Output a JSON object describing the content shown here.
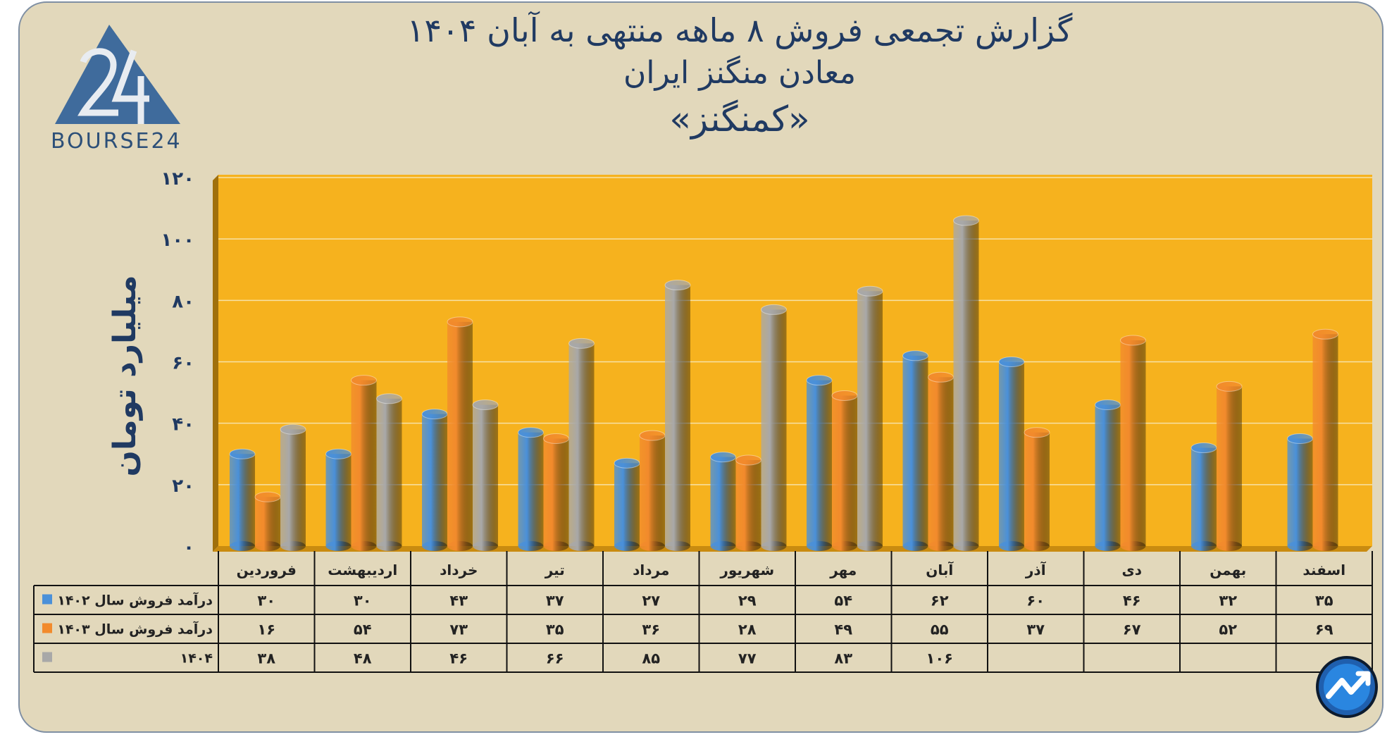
{
  "title": {
    "line1": "گزارش تجمعی فروش ۸ ماهه منتهی به آبان ۱۴۰۴",
    "line2": "معادن منگنز ایران",
    "line3": "«کمنگنز»"
  },
  "brand": {
    "text": "BOURSE24",
    "logo_icon": "bourse24-triangle-logo",
    "corner_icon": "trend-arrow-logo"
  },
  "colors": {
    "series_1402": "#4a90d9",
    "series_1403": "#f28a2c",
    "series_1404": "#a8a8a8",
    "plot_bg": "#f6b21e",
    "card_bg": "#e2d8bb",
    "title": "#203a62"
  },
  "chart_data": {
    "type": "bar",
    "ylabel": "میلیارد تومان",
    "ylim": [
      0,
      120
    ],
    "yticks": [
      0,
      20,
      40,
      60,
      80,
      100,
      120
    ],
    "ytick_labels": [
      "۰",
      "۲۰",
      "۴۰",
      "۶۰",
      "۸۰",
      "۱۰۰",
      "۱۲۰"
    ],
    "grid": true,
    "categories": [
      "فروردین",
      "اردیبهشت",
      "خرداد",
      "تیر",
      "مرداد",
      "شهریور",
      "مهر",
      "آبان",
      "آذر",
      "دی",
      "بهمن",
      "اسفند"
    ],
    "series": [
      {
        "name": "درآمد فروش سال ۱۴۰۲",
        "values": [
          30,
          30,
          43,
          37,
          27,
          29,
          54,
          62,
          60,
          46,
          32,
          35
        ],
        "labels": [
          "۳۰",
          "۳۰",
          "۴۳",
          "۳۷",
          "۲۷",
          "۲۹",
          "۵۴",
          "۶۲",
          "۶۰",
          "۴۶",
          "۳۲",
          "۳۵"
        ]
      },
      {
        "name": "درآمد فروش سال ۱۴۰۳",
        "values": [
          16,
          54,
          73,
          35,
          36,
          28,
          49,
          55,
          37,
          67,
          52,
          69
        ],
        "labels": [
          "۱۶",
          "۵۴",
          "۷۳",
          "۳۵",
          "۳۶",
          "۲۸",
          "۴۹",
          "۵۵",
          "۳۷",
          "۶۷",
          "۵۲",
          "۶۹"
        ]
      },
      {
        "name": "۱۴۰۴",
        "values": [
          38,
          48,
          46,
          66,
          85,
          77,
          83,
          106,
          null,
          null,
          null,
          null
        ],
        "labels": [
          "۳۸",
          "۴۸",
          "۴۶",
          "۶۶",
          "۸۵",
          "۷۷",
          "۸۳",
          "۱۰۶",
          "",
          "",
          "",
          ""
        ]
      }
    ]
  }
}
